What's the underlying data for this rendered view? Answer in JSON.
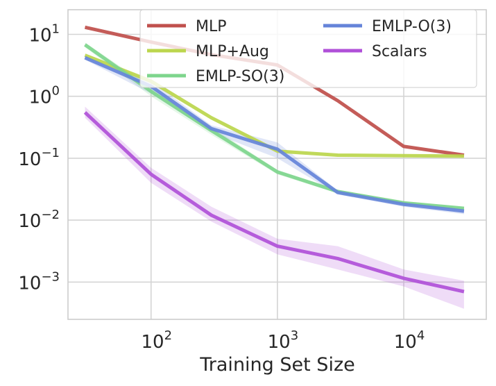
{
  "chart_data": {
    "type": "line",
    "title": "",
    "xlabel": "Training Set Size",
    "ylabel": "",
    "x_scale": "log",
    "y_scale": "log",
    "xlim": [
      22,
      45000
    ],
    "ylim": [
      0.00025,
      25
    ],
    "x_ticks": [
      {
        "value": 100,
        "base": "10",
        "exp": "2"
      },
      {
        "value": 1000,
        "base": "10",
        "exp": "3"
      },
      {
        "value": 10000,
        "base": "10",
        "exp": "4"
      }
    ],
    "y_ticks": [
      {
        "value": 10,
        "base": "10",
        "exp": "1"
      },
      {
        "value": 1,
        "base": "10",
        "exp": "0"
      },
      {
        "value": 0.1,
        "base": "10",
        "exp": "−1"
      },
      {
        "value": 0.01,
        "base": "10",
        "exp": "−2"
      },
      {
        "value": 0.001,
        "base": "10",
        "exp": "−3"
      }
    ],
    "grid": true,
    "legend_position": "top-right",
    "legend_columns": 2,
    "x": [
      30,
      100,
      300,
      1000,
      3000,
      10000,
      30000
    ],
    "series": [
      {
        "name": "MLP",
        "color": "#c0504d",
        "values": [
          13.0,
          7.5,
          4.7,
          3.2,
          0.85,
          0.155,
          0.112
        ],
        "lower": [
          12.5,
          7.2,
          4.5,
          3.0,
          0.8,
          0.148,
          0.108
        ],
        "upper": [
          13.5,
          7.8,
          4.9,
          3.4,
          0.9,
          0.162,
          0.116
        ]
      },
      {
        "name": "MLP+Aug",
        "color": "#bcd64e",
        "values": [
          4.6,
          1.75,
          0.45,
          0.13,
          0.112,
          0.11,
          0.108
        ],
        "lower": [
          4.3,
          1.6,
          0.42,
          0.125,
          0.108,
          0.106,
          0.104
        ],
        "upper": [
          4.9,
          1.9,
          0.48,
          0.135,
          0.116,
          0.114,
          0.112
        ]
      },
      {
        "name": "EMLP-SO(3)",
        "color": "#7ed58c",
        "values": [
          6.8,
          1.2,
          0.28,
          0.06,
          0.029,
          0.019,
          0.0155
        ],
        "lower": [
          6.2,
          1.0,
          0.24,
          0.055,
          0.027,
          0.018,
          0.0145
        ],
        "upper": [
          7.4,
          1.4,
          0.32,
          0.065,
          0.031,
          0.02,
          0.0165
        ]
      },
      {
        "name": "EMLP-O(3)",
        "color": "#6584d9",
        "values": [
          4.2,
          1.45,
          0.3,
          0.14,
          0.028,
          0.018,
          0.014
        ],
        "lower": [
          3.9,
          1.1,
          0.26,
          0.1,
          0.026,
          0.0165,
          0.0125
        ],
        "upper": [
          4.5,
          1.75,
          0.34,
          0.18,
          0.03,
          0.0195,
          0.0155
        ]
      },
      {
        "name": "Scalars",
        "color": "#b050d8",
        "values": [
          0.55,
          0.055,
          0.012,
          0.0038,
          0.0024,
          0.00115,
          0.0007
        ],
        "lower": [
          0.45,
          0.04,
          0.0095,
          0.0028,
          0.0016,
          0.00085,
          0.00037
        ],
        "upper": [
          0.68,
          0.07,
          0.0165,
          0.005,
          0.0038,
          0.0016,
          0.00105
        ]
      }
    ]
  }
}
